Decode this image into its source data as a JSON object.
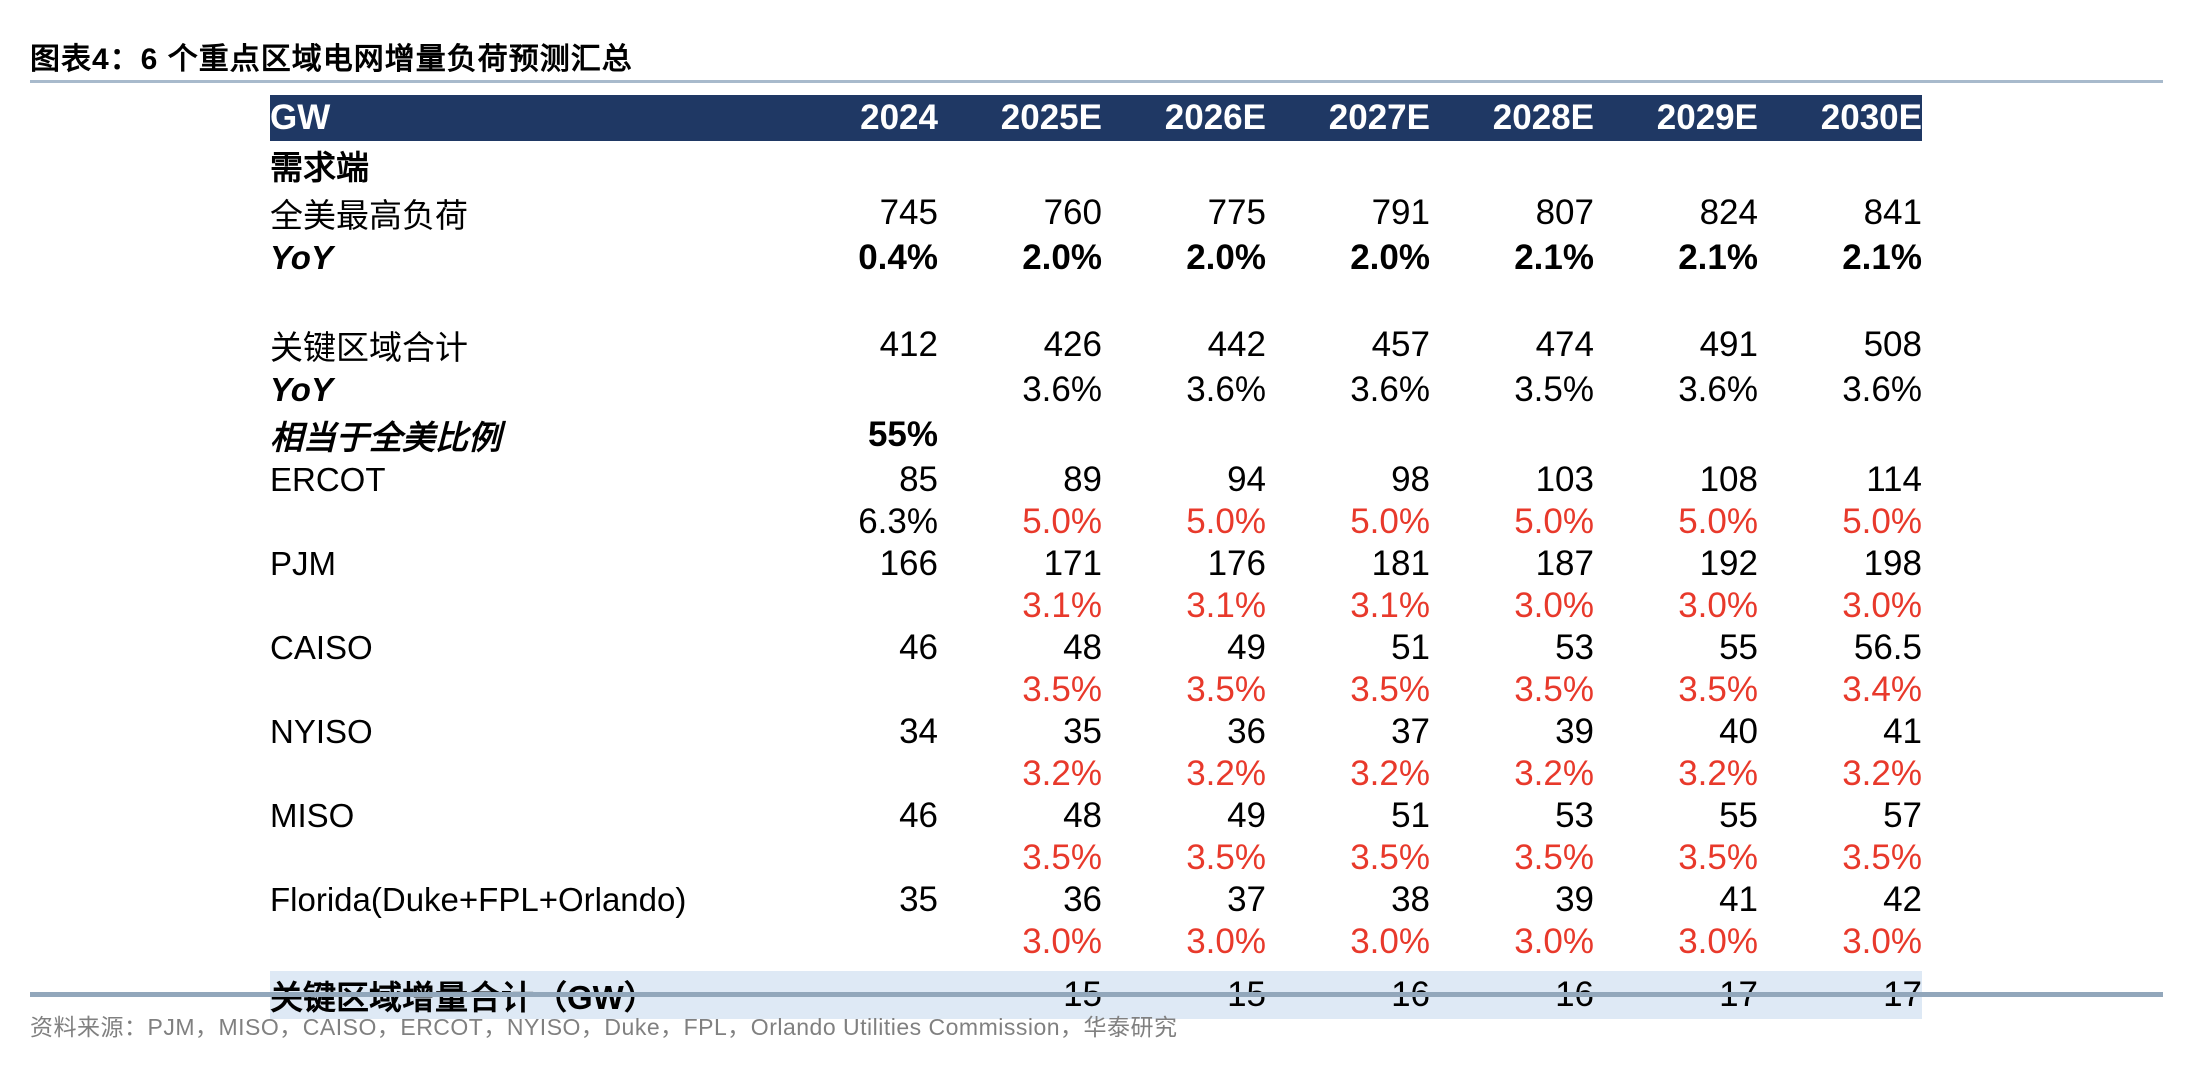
{
  "title": "图表4：6 个重点区域电网增量负荷预测汇总",
  "source_note": "资料来源：PJM，MISO，CAISO，ERCOT，NYISO，Duke，FPL，Orlando Utilities Commission，华泰研究",
  "colors": {
    "header_bg": "#1F3864",
    "header_text": "#FFFFFF",
    "summary_row_bg": "#DEE9F5",
    "yoy_red": "#E8392B",
    "rule_top": "#A8BACC",
    "rule_bottom": "#92A7BB",
    "source_text": "#808080",
    "body_text": "#000000"
  },
  "chart_data": {
    "type": "table",
    "unit_label": "GW",
    "columns": [
      "2024",
      "2025E",
      "2026E",
      "2027E",
      "2028E",
      "2029E",
      "2030E"
    ],
    "rows": [
      {
        "kind": "section",
        "label": "需求端",
        "values": [
          "",
          "",
          "",
          "",
          "",
          "",
          ""
        ]
      },
      {
        "kind": "data",
        "label": "全美最高负荷",
        "indent": 1,
        "values": [
          "745",
          "760",
          "775",
          "791",
          "807",
          "824",
          "841"
        ]
      },
      {
        "kind": "data",
        "label": "YoY",
        "indent": 2,
        "label_style": "bold-italic",
        "values_bold": true,
        "values": [
          "0.4%",
          "2.0%",
          "2.0%",
          "2.0%",
          "2.1%",
          "2.1%",
          "2.1%"
        ]
      },
      {
        "kind": "spacer"
      },
      {
        "kind": "data",
        "label": "关键区域合计",
        "indent": 1,
        "values": [
          "412",
          "426",
          "442",
          "457",
          "474",
          "491",
          "508"
        ]
      },
      {
        "kind": "data",
        "label": "YoY",
        "indent": 2,
        "label_style": "bold-italic",
        "values": [
          "",
          "3.6%",
          "3.6%",
          "3.6%",
          "3.5%",
          "3.6%",
          "3.6%"
        ]
      },
      {
        "kind": "data",
        "label": "相当于全美比例",
        "indent": 2,
        "label_style": "bold-italic",
        "values_bold": true,
        "values": [
          "55%",
          "",
          "",
          "",
          "",
          "",
          ""
        ]
      },
      {
        "kind": "data",
        "label": "ERCOT",
        "indent": 1,
        "values": [
          "85",
          "89",
          "94",
          "98",
          "103",
          "108",
          "114"
        ]
      },
      {
        "kind": "data",
        "label": "",
        "indent": 1,
        "values": [
          "6.3%",
          "5.0%",
          "5.0%",
          "5.0%",
          "5.0%",
          "5.0%",
          "5.0%"
        ],
        "cell_colors": [
          "black",
          "red",
          "red",
          "red",
          "red",
          "red",
          "red"
        ]
      },
      {
        "kind": "data",
        "label": "PJM",
        "indent": 1,
        "values": [
          "166",
          "171",
          "176",
          "181",
          "187",
          "192",
          "198"
        ]
      },
      {
        "kind": "data",
        "label": "",
        "indent": 1,
        "value_color": "red",
        "values": [
          "",
          "3.1%",
          "3.1%",
          "3.1%",
          "3.0%",
          "3.0%",
          "3.0%"
        ]
      },
      {
        "kind": "data",
        "label": "CAISO",
        "indent": 1,
        "values": [
          "46",
          "48",
          "49",
          "51",
          "53",
          "55",
          "56.5"
        ]
      },
      {
        "kind": "data",
        "label": "",
        "indent": 1,
        "value_color": "red",
        "values": [
          "",
          "3.5%",
          "3.5%",
          "3.5%",
          "3.5%",
          "3.5%",
          "3.4%"
        ]
      },
      {
        "kind": "data",
        "label": "NYISO",
        "indent": 1,
        "values": [
          "34",
          "35",
          "36",
          "37",
          "39",
          "40",
          "41"
        ]
      },
      {
        "kind": "data",
        "label": "",
        "indent": 1,
        "value_color": "red",
        "values": [
          "",
          "3.2%",
          "3.2%",
          "3.2%",
          "3.2%",
          "3.2%",
          "3.2%"
        ]
      },
      {
        "kind": "data",
        "label": "MISO",
        "indent": 1,
        "values": [
          "46",
          "48",
          "49",
          "51",
          "53",
          "55",
          "57"
        ]
      },
      {
        "kind": "data",
        "label": "",
        "indent": 1,
        "value_color": "red",
        "values": [
          "",
          "3.5%",
          "3.5%",
          "3.5%",
          "3.5%",
          "3.5%",
          "3.5%"
        ]
      },
      {
        "kind": "data",
        "label": "Florida(Duke+FPL+Orlando)",
        "indent": 1,
        "values": [
          "35",
          "36",
          "37",
          "38",
          "39",
          "41",
          "42"
        ]
      },
      {
        "kind": "data",
        "label": "",
        "indent": 1,
        "value_color": "red",
        "values": [
          "",
          "3.0%",
          "3.0%",
          "3.0%",
          "3.0%",
          "3.0%",
          "3.0%"
        ]
      },
      {
        "kind": "gap"
      },
      {
        "kind": "summary",
        "label": "关键区域增量合计（GW）",
        "values": [
          "",
          "15",
          "15",
          "16",
          "16",
          "17",
          "17"
        ]
      }
    ]
  }
}
